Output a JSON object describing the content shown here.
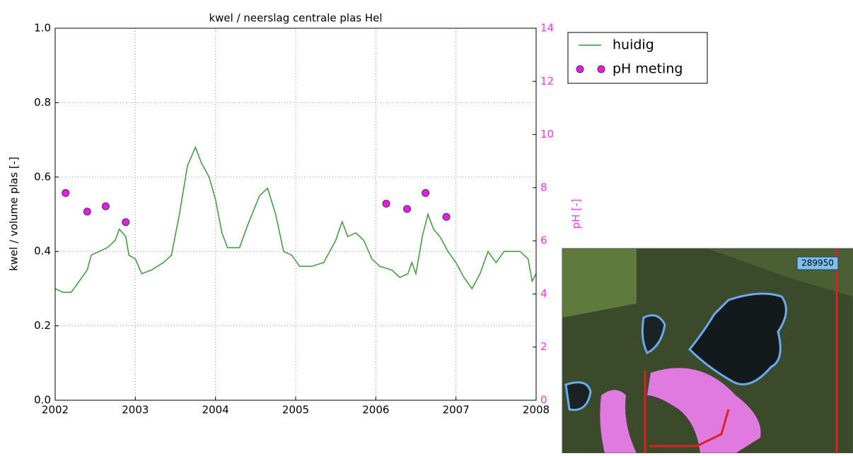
{
  "chart_data": {
    "type": "line",
    "title": "kwel / neerslag centrale plas Hel",
    "y_label": "kwel / volume plas [-]",
    "y2_label": "pH [-]",
    "xlim": [
      2002,
      2008
    ],
    "xticks": [
      2002,
      2003,
      2004,
      2005,
      2006,
      2007,
      2008
    ],
    "ylim": [
      0,
      1
    ],
    "yticks": [
      {
        "value": 0,
        "label": "0.0"
      },
      {
        "value": 0.2,
        "label": "0.2"
      },
      {
        "value": 0.4,
        "label": "0.4"
      },
      {
        "value": 0.6,
        "label": "0.6"
      },
      {
        "value": 0.8,
        "label": "0.8"
      },
      {
        "value": 1,
        "label": "1.0"
      }
    ],
    "y2lim": [
      0,
      14
    ],
    "y2ticks": [
      0,
      2,
      4,
      6,
      8,
      10,
      12,
      14
    ],
    "grid": true,
    "legend": "outside-upper-right",
    "series": [
      {
        "name": "huidig",
        "color": "#3a9a3a",
        "x": [
          2002.0,
          2002.1,
          2002.2,
          2002.3,
          2002.4,
          2002.45,
          2002.55,
          2002.65,
          2002.75,
          2002.8,
          2002.88,
          2002.92,
          2003.0,
          2003.08,
          2003.2,
          2003.35,
          2003.45,
          2003.55,
          2003.65,
          2003.75,
          2003.82,
          2003.92,
          2004.0,
          2004.08,
          2004.15,
          2004.3,
          2004.4,
          2004.55,
          2004.65,
          2004.75,
          2004.85,
          2004.95,
          2005.05,
          2005.2,
          2005.35,
          2005.5,
          2005.58,
          2005.65,
          2005.75,
          2005.85,
          2005.95,
          2006.05,
          2006.2,
          2006.3,
          2006.4,
          2006.45,
          2006.5,
          2006.58,
          2006.65,
          2006.72,
          2006.8,
          2006.9,
          2007.0,
          2007.1,
          2007.2,
          2007.3,
          2007.4,
          2007.5,
          2007.6,
          2007.7,
          2007.8,
          2007.9,
          2007.95,
          2008.0
        ],
        "values": [
          0.3,
          0.29,
          0.29,
          0.32,
          0.35,
          0.39,
          0.4,
          0.41,
          0.43,
          0.46,
          0.44,
          0.39,
          0.38,
          0.34,
          0.35,
          0.37,
          0.39,
          0.5,
          0.63,
          0.68,
          0.64,
          0.6,
          0.54,
          0.45,
          0.41,
          0.41,
          0.47,
          0.55,
          0.57,
          0.5,
          0.4,
          0.39,
          0.36,
          0.36,
          0.37,
          0.43,
          0.48,
          0.44,
          0.45,
          0.43,
          0.38,
          0.36,
          0.35,
          0.33,
          0.34,
          0.37,
          0.34,
          0.44,
          0.5,
          0.46,
          0.44,
          0.4,
          0.37,
          0.33,
          0.3,
          0.34,
          0.4,
          0.37,
          0.4,
          0.4,
          0.4,
          0.38,
          0.32,
          0.34
        ]
      },
      {
        "name": "pH meting",
        "color": "#e020e0",
        "axis": "y2",
        "type": "scatter",
        "x": [
          2002.13,
          2002.4,
          2002.63,
          2002.88,
          2006.13,
          2006.39,
          2006.62,
          2006.88
        ],
        "values": [
          7.8,
          7.1,
          7.3,
          6.7,
          7.4,
          7.2,
          7.8,
          6.9
        ]
      }
    ]
  },
  "map": {
    "label": "289950"
  }
}
